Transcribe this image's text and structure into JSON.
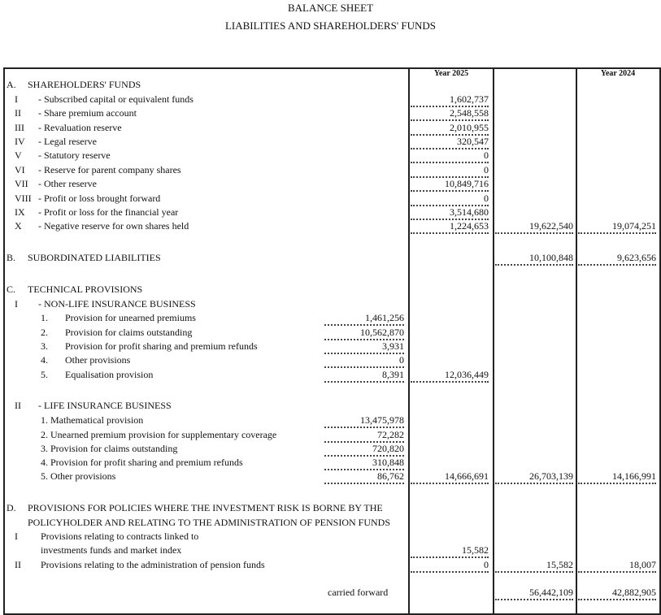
{
  "header": {
    "title": "BALANCE SHEET",
    "subtitle": "LIABILITIES AND SHAREHOLDERS' FUNDS"
  },
  "columns": {
    "year_current": "Year 2025",
    "year_previous": "Year 2024"
  },
  "rows": [
    {
      "num": "A.",
      "label": "SHAREHOLDERS' FUNDS"
    },
    {
      "num": "I",
      "label": "- Subscribed capital or equivalent funds",
      "y2025": "1,602,737"
    },
    {
      "num": "II",
      "label": "- Share premium account",
      "y2025": "2,548,558"
    },
    {
      "num": "III",
      "label": "- Revaluation reserve",
      "y2025": "2,010,955"
    },
    {
      "num": "IV",
      "label": "- Legal reserve",
      "y2025": "320,547"
    },
    {
      "num": "V",
      "label": "- Statutory reserve",
      "y2025": "0"
    },
    {
      "num": "VI",
      "label": "- Reserve for parent company shares",
      "y2025": "0"
    },
    {
      "num": "VII",
      "label": "- Other reserve",
      "y2025": "10,849,716"
    },
    {
      "num": "VIII",
      "label": "- Profit or loss brought forward",
      "y2025": "0"
    },
    {
      "num": "IX",
      "label": "- Profit or loss for the financial year",
      "y2025": "3,514,680"
    },
    {
      "num": "X",
      "label": "- Negative reserve for own shares held",
      "y2025": "1,224,653",
      "total": "19,622,540",
      "y2024": "19,074,251"
    },
    {
      "num": "B.",
      "label": "SUBORDINATED LIABILITIES",
      "total": "10,100,848",
      "y2024": "9,623,656"
    },
    {
      "num": "C.",
      "label": "TECHNICAL PROVISIONS"
    },
    {
      "num": "I",
      "label": "- NON-LIFE INSURANCE BUSINESS"
    },
    {
      "num": "1.",
      "label": "Provision for unearned premiums",
      "inner": "1,461,256"
    },
    {
      "num": "2.",
      "label": "Provision for claims outstanding",
      "inner": "10,562,870"
    },
    {
      "num": "3.",
      "label": "Provision for profit sharing and premium refunds",
      "inner": "3,931"
    },
    {
      "num": "4.",
      "label": "Other provisions",
      "inner": "0"
    },
    {
      "num": "5.",
      "label": "Equalisation provision",
      "inner": "8,391",
      "y2025": "12,036,449"
    },
    {
      "num": "II",
      "label": "- LIFE INSURANCE BUSINESS"
    },
    {
      "num": "",
      "label": "1. Mathematical provision",
      "inner": "13,475,978"
    },
    {
      "num": "",
      "label": "2. Unearned premium provision for supplementary coverage",
      "inner": "72,282"
    },
    {
      "num": "",
      "label": "3. Provision for claims outstanding",
      "inner": "720,820"
    },
    {
      "num": "",
      "label": "4. Provision for profit sharing and premium refunds",
      "inner": "310,848"
    },
    {
      "num": "",
      "label": "5. Other provisions",
      "inner": "86,762",
      "y2025": "14,666,691",
      "total": "26,703,139",
      "y2024": "14,166,991"
    },
    {
      "num": "D.",
      "label": "PROVISIONS FOR POLICIES WHERE THE INVESTMENT RISK IS BORNE BY THE"
    },
    {
      "num": "",
      "label": "POLICYHOLDER AND RELATING TO THE ADMINISTRATION OF PENSION FUNDS"
    },
    {
      "num": "I",
      "label": "Provisions relating to contracts linked to"
    },
    {
      "num": "",
      "label": "investments funds and market index",
      "y2025": "15,582"
    },
    {
      "num": "II",
      "label": "Provisions relating to the administration of pension funds",
      "y2025": "0",
      "total": "15,582",
      "y2024": "18,007"
    },
    {
      "num": "",
      "label": "carried forward",
      "total": "56,442,109",
      "y2024": "42,882,905"
    }
  ]
}
